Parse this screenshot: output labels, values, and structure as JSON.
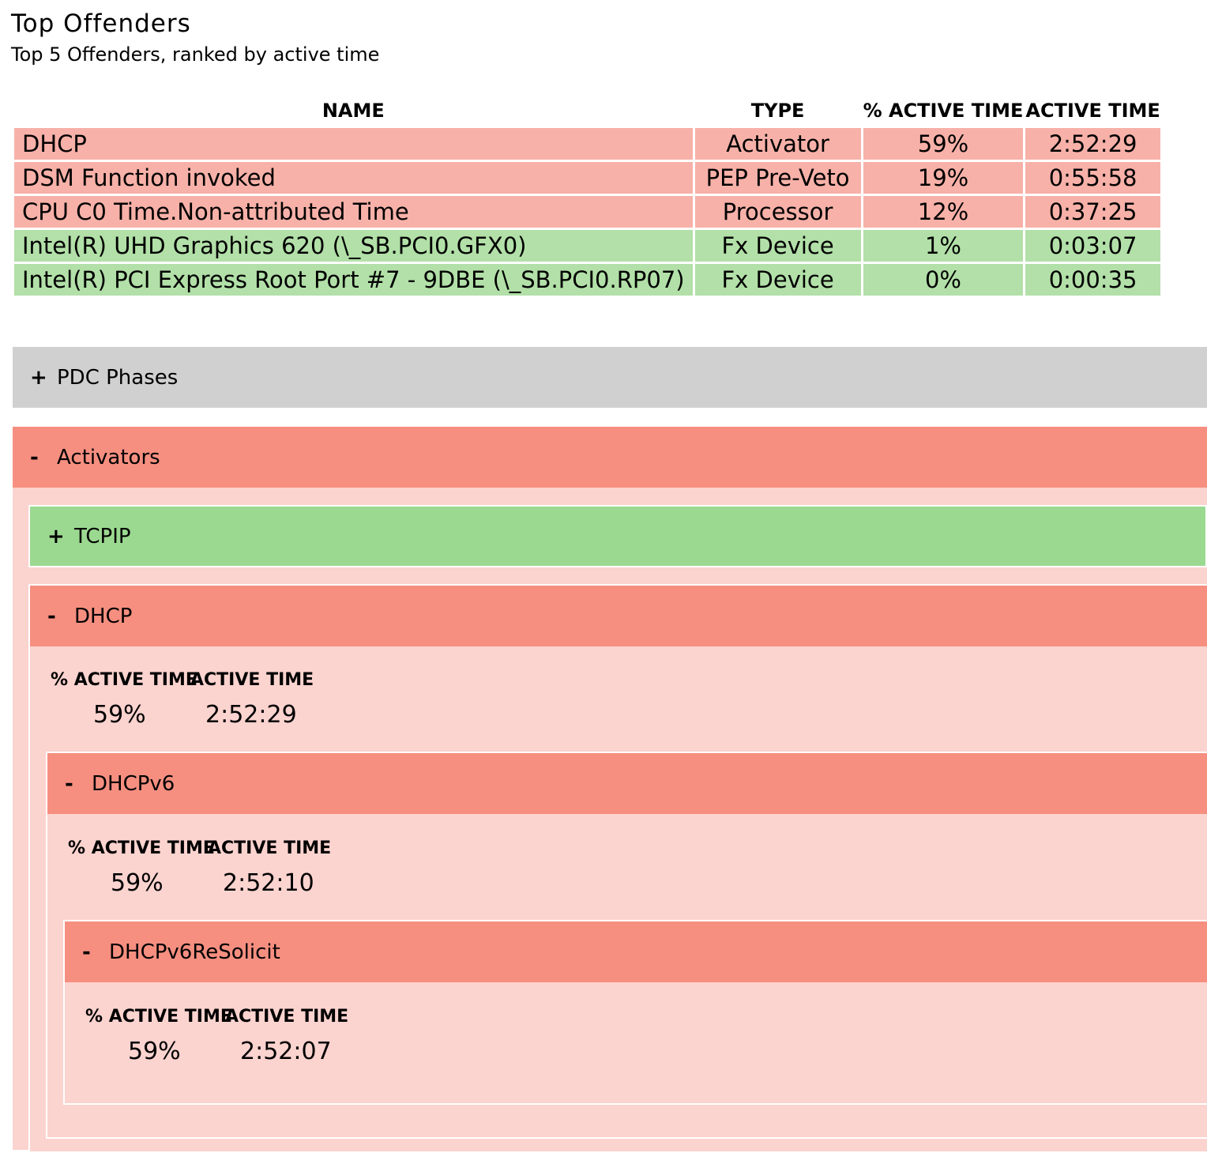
{
  "header": {
    "title": "Top Offenders",
    "subtitle": "Top 5 Offenders, ranked by active time"
  },
  "table": {
    "columns": [
      "NAME",
      "TYPE",
      "% ACTIVE TIME",
      "ACTIVE TIME"
    ],
    "rows": [
      {
        "name": "DHCP",
        "type": "Activator",
        "pct": "59%",
        "time": "2:52:29",
        "status": "red"
      },
      {
        "name": "DSM Function invoked",
        "type": "PEP Pre-Veto",
        "pct": "19%",
        "time": "0:55:58",
        "status": "red"
      },
      {
        "name": "CPU C0 Time.Non-attributed Time",
        "type": "Processor",
        "pct": "12%",
        "time": "0:37:25",
        "status": "red"
      },
      {
        "name": "Intel(R) UHD Graphics 620 (\\_SB.PCI0.GFX0)",
        "type": "Fx Device",
        "pct": "1%",
        "time": "0:03:07",
        "status": "green"
      },
      {
        "name": "Intel(R) PCI Express Root Port #7 - 9DBE (\\_SB.PCI0.RP07)",
        "type": "Fx Device",
        "pct": "0%",
        "time": "0:00:35",
        "status": "green"
      }
    ]
  },
  "colors": {
    "red_row": "#f7b1a8",
    "green_row": "#b2e0a8",
    "section_gray": "#d0d0d0",
    "section_salmon": "#f68f80",
    "section_green": "#9bd990",
    "panel_pink": "#fbd3cf"
  },
  "sections": {
    "pdc": {
      "toggle": "+",
      "label": "PDC Phases"
    },
    "activators": {
      "toggle": "-",
      "label": "Activators"
    },
    "tcpip": {
      "toggle": "+",
      "label": "TCPIP"
    },
    "dhcp": {
      "toggle": "-",
      "label": "DHCP",
      "stat_pct_header": "% ACTIVE TIME",
      "stat_time_header": "ACTIVE TIME",
      "pct": "59%",
      "time": "2:52:29"
    },
    "dhcpv6": {
      "toggle": "-",
      "label": "DHCPv6",
      "stat_pct_header": "% ACTIVE TIME",
      "stat_time_header": "ACTIVE TIME",
      "pct": "59%",
      "time": "2:52:10"
    },
    "dhcpv6resolicit": {
      "toggle": "-",
      "label": "DHCPv6ReSolicit",
      "stat_pct_header": "% ACTIVE TIME",
      "stat_time_header": "ACTIVE TIME",
      "pct": "59%",
      "time": "2:52:07"
    }
  }
}
